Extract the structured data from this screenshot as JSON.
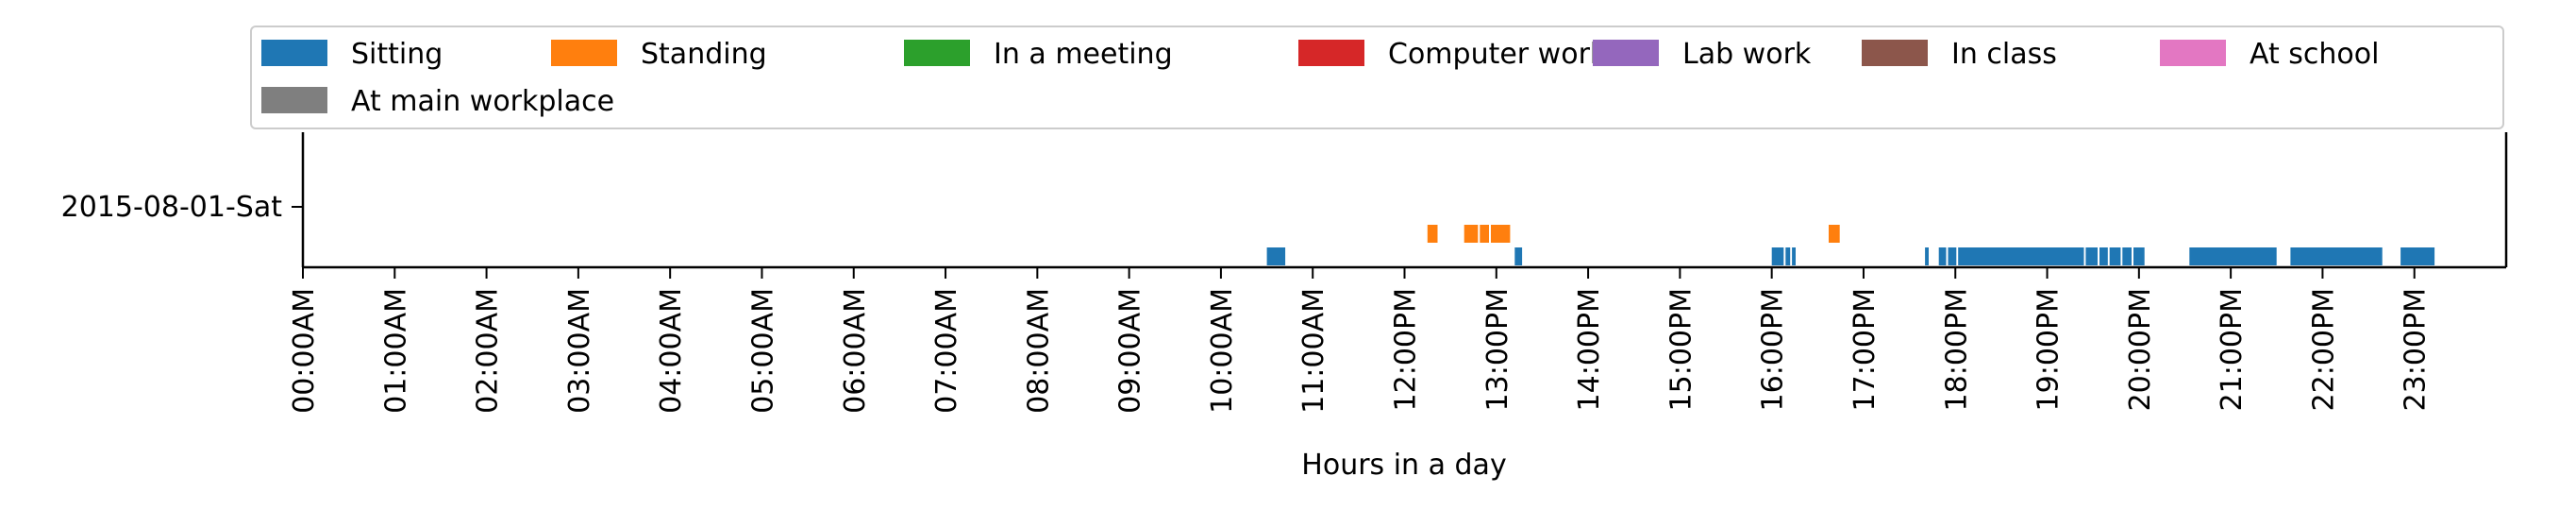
{
  "chart_data": {
    "type": "bar",
    "xlabel": "Hours in a day",
    "ylabel": "",
    "y_categories": [
      "2015-08-01-Sat"
    ],
    "x_range_hours": [
      0,
      24
    ],
    "x_ticks": [
      {
        "hour": 0,
        "label": "00:00AM"
      },
      {
        "hour": 1,
        "label": "01:00AM"
      },
      {
        "hour": 2,
        "label": "02:00AM"
      },
      {
        "hour": 3,
        "label": "03:00AM"
      },
      {
        "hour": 4,
        "label": "04:00AM"
      },
      {
        "hour": 5,
        "label": "05:00AM"
      },
      {
        "hour": 6,
        "label": "06:00AM"
      },
      {
        "hour": 7,
        "label": "07:00AM"
      },
      {
        "hour": 8,
        "label": "08:00AM"
      },
      {
        "hour": 9,
        "label": "09:00AM"
      },
      {
        "hour": 10,
        "label": "10:00AM"
      },
      {
        "hour": 11,
        "label": "11:00AM"
      },
      {
        "hour": 12,
        "label": "12:00PM"
      },
      {
        "hour": 13,
        "label": "13:00PM"
      },
      {
        "hour": 14,
        "label": "14:00PM"
      },
      {
        "hour": 15,
        "label": "15:00PM"
      },
      {
        "hour": 16,
        "label": "16:00PM"
      },
      {
        "hour": 17,
        "label": "17:00PM"
      },
      {
        "hour": 18,
        "label": "18:00PM"
      },
      {
        "hour": 19,
        "label": "19:00PM"
      },
      {
        "hour": 20,
        "label": "20:00PM"
      },
      {
        "hour": 21,
        "label": "21:00PM"
      },
      {
        "hour": 22,
        "label": "22:00PM"
      },
      {
        "hour": 23,
        "label": "23:00PM"
      }
    ],
    "legend_position": "top",
    "series": [
      {
        "name": "Sitting",
        "color": "#1f77b4",
        "row": 0,
        "segments": [
          [
            10.5,
            10.7
          ],
          [
            16.0,
            16.13
          ],
          [
            16.15,
            16.2
          ],
          [
            16.22,
            16.26
          ],
          [
            17.67,
            17.71
          ],
          [
            17.82,
            17.9
          ],
          [
            17.92,
            18.01
          ],
          [
            18.03,
            19.4
          ],
          [
            19.42,
            19.55
          ],
          [
            19.57,
            19.66
          ],
          [
            19.68,
            19.8
          ],
          [
            19.82,
            19.92
          ],
          [
            19.94,
            20.06
          ],
          [
            20.55,
            21.5
          ],
          [
            21.65,
            22.65
          ],
          [
            22.85,
            23.22
          ],
          [
            13.2,
            13.28
          ]
        ]
      },
      {
        "name": "Standing",
        "color": "#ff7f0e",
        "row": 1,
        "segments": [
          [
            12.25,
            12.36
          ],
          [
            12.65,
            12.8
          ],
          [
            12.82,
            12.92
          ],
          [
            12.94,
            13.15
          ],
          [
            16.62,
            16.74
          ]
        ]
      },
      {
        "name": "In a meeting",
        "color": "#2ca02c",
        "row": 2,
        "segments": []
      },
      {
        "name": "Computer work",
        "color": "#d62728",
        "row": 3,
        "segments": []
      },
      {
        "name": "Lab work",
        "color": "#9467bd",
        "row": 4,
        "segments": []
      },
      {
        "name": "In class",
        "color": "#8c564b",
        "row": 5,
        "segments": []
      },
      {
        "name": "At school",
        "color": "#e377c2",
        "row": 6,
        "segments": []
      },
      {
        "name": "At main workplace",
        "color": "#7f7f7f",
        "row": 7,
        "segments": []
      }
    ]
  }
}
